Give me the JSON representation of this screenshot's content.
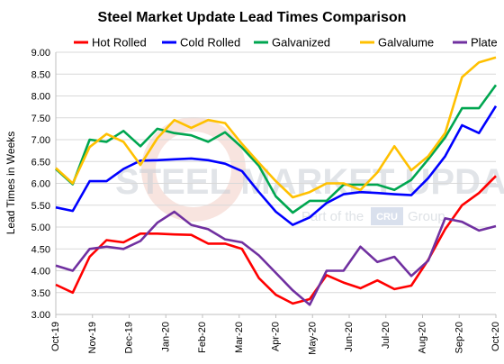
{
  "chart_data": {
    "type": "line",
    "title": "Steel Market Update Lead Times Comparison",
    "ylabel": "Lead Times in Weeks",
    "xlabel": "",
    "ylim": [
      3.0,
      9.0
    ],
    "yticks": [
      "3.00",
      "3.50",
      "4.00",
      "4.50",
      "5.00",
      "5.50",
      "6.00",
      "6.50",
      "7.00",
      "7.50",
      "8.00",
      "8.50",
      "9.00"
    ],
    "xticks": [
      "Oct-19",
      "Nov-19",
      "Dec-19",
      "Jan-20",
      "Feb-20",
      "Mar-20",
      "Apr-20",
      "May-20",
      "Jun-20",
      "Jul-20",
      "Aug-20",
      "Sep-20",
      "Oct-20"
    ],
    "grid": true,
    "legend_position": "top",
    "series": [
      {
        "name": "Hot Rolled",
        "color": "#ff0000",
        "values": [
          3.68,
          3.5,
          4.32,
          4.7,
          4.65,
          4.85,
          4.85,
          4.83,
          4.82,
          4.62,
          4.62,
          4.5,
          3.83,
          3.45,
          3.25,
          3.35,
          3.9,
          3.73,
          3.6,
          3.78,
          3.58,
          3.66,
          4.25,
          4.95,
          5.5,
          5.78,
          6.17
        ]
      },
      {
        "name": "Cold Rolled",
        "color": "#0000ff",
        "values": [
          5.45,
          5.37,
          6.05,
          6.05,
          6.33,
          6.52,
          6.53,
          6.55,
          6.57,
          6.53,
          6.45,
          6.28,
          5.8,
          5.35,
          5.05,
          5.22,
          5.55,
          5.75,
          5.8,
          5.78,
          5.75,
          5.73,
          6.12,
          6.62,
          7.33,
          7.15,
          7.77
        ]
      },
      {
        "name": "Galvanized",
        "color": "#00a650",
        "values": [
          6.33,
          5.98,
          7.0,
          6.95,
          7.2,
          6.85,
          7.25,
          7.15,
          7.1,
          6.95,
          7.17,
          6.82,
          6.4,
          5.7,
          5.33,
          5.6,
          5.6,
          5.97,
          5.97,
          5.97,
          5.85,
          6.08,
          6.55,
          7.05,
          7.72,
          7.72,
          8.25
        ]
      },
      {
        "name": "Galvalume",
        "color": "#ffc000",
        "values": [
          6.35,
          6.0,
          6.83,
          7.13,
          6.95,
          6.42,
          7.03,
          7.45,
          7.27,
          7.45,
          7.38,
          6.9,
          6.47,
          6.05,
          5.68,
          5.8,
          6.0,
          6.0,
          5.85,
          6.25,
          6.85,
          6.3,
          6.62,
          7.15,
          8.43,
          8.77,
          8.88
        ]
      },
      {
        "name": "Plate",
        "color": "#7030a0",
        "values": [
          4.12,
          4.0,
          4.5,
          4.55,
          4.5,
          4.68,
          5.1,
          5.35,
          5.05,
          4.95,
          4.72,
          4.65,
          4.35,
          3.95,
          3.55,
          3.22,
          4.0,
          4.0,
          4.55,
          4.2,
          4.32,
          3.88,
          4.23,
          5.2,
          5.12,
          4.92,
          5.02
        ]
      }
    ]
  },
  "watermark": {
    "brand": "STEEL MARKET UPDATE",
    "sub_left": "Part of the",
    "sub_badge": "CRU",
    "sub_right": "Group"
  }
}
